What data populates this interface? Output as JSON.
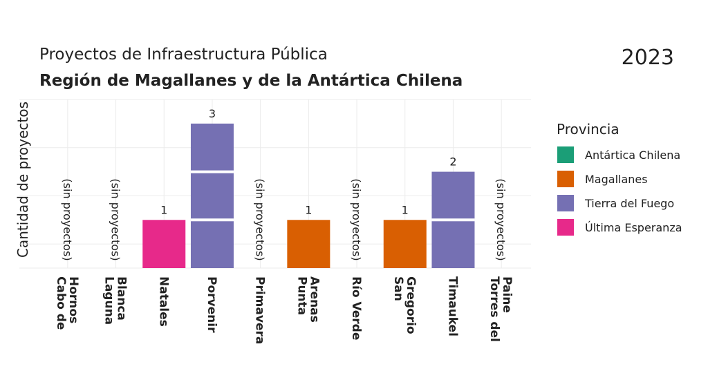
{
  "chart_data": {
    "type": "bar",
    "title": "Proyectos de Infraestructura Pública",
    "subtitle": "Región de Magallanes y de la Antártica Chilena",
    "annotation": "2023",
    "y_label": "Cantidad de proyectos",
    "categories": [
      "Cabo de\nHornos",
      "Laguna\nBlanca",
      "Natales",
      "Porvenir",
      "Primavera",
      "Punta\nArenas",
      "Río Verde",
      "San\nGregorio",
      "Timaukel",
      "Torres del\nPaine"
    ],
    "values": [
      0,
      0,
      1,
      3,
      0,
      1,
      0,
      1,
      2,
      0
    ],
    "value_labels": [
      "(sin proyectos)",
      "(sin proyectos)",
      "1",
      "3",
      "(sin proyectos)",
      "1",
      "(sin proyectos)",
      "1",
      "2",
      "(sin proyectos)"
    ],
    "provinces": [
      null,
      null,
      "Última Esperanza",
      "Tierra del Fuego",
      null,
      "Magallanes",
      null,
      "Magallanes",
      "Tierra del Fuego",
      null
    ],
    "legend_title": "Provincia",
    "legend": [
      {
        "name": "Antártica Chilena",
        "color": "#1b9e77"
      },
      {
        "name": "Magallanes",
        "color": "#d95f02"
      },
      {
        "name": "Tierra del Fuego",
        "color": "#7570b3"
      },
      {
        "name": "Última Esperanza",
        "color": "#e7298a"
      }
    ],
    "ylim": [
      0,
      3.5
    ],
    "yticks": [
      0.5,
      1.5,
      2.5,
      3.5
    ],
    "ytick_labels": false,
    "grid": true
  }
}
